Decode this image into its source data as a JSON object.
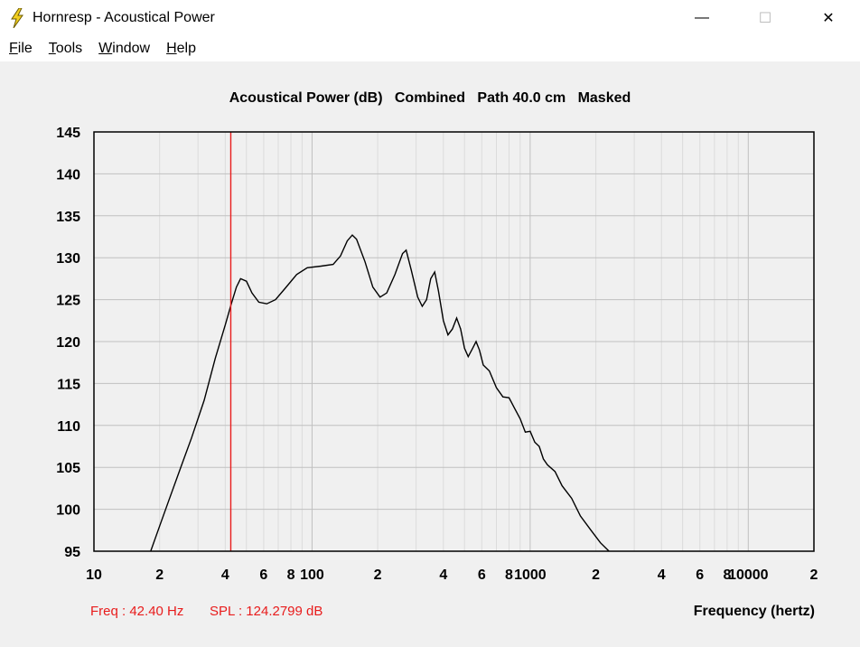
{
  "window": {
    "title": "Hornresp - Acoustical Power",
    "minimize_glyph": "—",
    "maximize_glyph": "☐",
    "close_glyph": "✕",
    "icon": "lightning-icon"
  },
  "menu": [
    {
      "acc": "F",
      "rest": "ile"
    },
    {
      "acc": "T",
      "rest": "ools"
    },
    {
      "acc": "W",
      "rest": "indow"
    },
    {
      "acc": "H",
      "rest": "elp"
    }
  ],
  "status": {
    "freq": "Freq : 42.40 Hz",
    "spl": "SPL : 124.2799 dB"
  },
  "colors": {
    "marker": "#e81c1c",
    "curve": "#000000",
    "grid_major": "#c0c0c0",
    "grid_minor": "#dcdcdc"
  },
  "chart_data": {
    "type": "line",
    "title": "Acoustical Power (dB)   Combined   Path 40.0 cm   Masked",
    "xlabel": "Frequency (hertz)",
    "ylabel": "",
    "x_scale": "log",
    "xlim": [
      10,
      20000
    ],
    "ylim": [
      95,
      145
    ],
    "yticks": [
      145,
      140,
      135,
      130,
      125,
      120,
      115,
      110,
      105,
      100,
      95
    ],
    "xtick_labels": [
      {
        "v": 10,
        "t": "10"
      },
      {
        "v": 20,
        "t": "2"
      },
      {
        "v": 40,
        "t": "4"
      },
      {
        "v": 60,
        "t": "6"
      },
      {
        "v": 80,
        "t": "8"
      },
      {
        "v": 100,
        "t": "100"
      },
      {
        "v": 200,
        "t": "2"
      },
      {
        "v": 400,
        "t": "4"
      },
      {
        "v": 600,
        "t": "6"
      },
      {
        "v": 800,
        "t": "8"
      },
      {
        "v": 1000,
        "t": "1000"
      },
      {
        "v": 2000,
        "t": "2"
      },
      {
        "v": 4000,
        "t": "4"
      },
      {
        "v": 6000,
        "t": "6"
      },
      {
        "v": 8000,
        "t": "8"
      },
      {
        "v": 10000,
        "t": "10000"
      },
      {
        "v": 20000,
        "t": "2"
      }
    ],
    "marker_x": 42.4,
    "series": [
      {
        "points": [
          [
            18.2,
            95
          ],
          [
            20,
            98
          ],
          [
            22,
            101
          ],
          [
            25,
            105
          ],
          [
            28,
            108.5
          ],
          [
            32,
            113
          ],
          [
            36,
            118
          ],
          [
            40,
            122
          ],
          [
            42.4,
            124.3
          ],
          [
            45,
            126.5
          ],
          [
            47,
            127.5
          ],
          [
            50,
            127.2
          ],
          [
            53,
            125.8
          ],
          [
            57,
            124.7
          ],
          [
            62,
            124.5
          ],
          [
            68,
            125
          ],
          [
            75,
            126.3
          ],
          [
            85,
            128
          ],
          [
            95,
            128.8
          ],
          [
            110,
            129
          ],
          [
            125,
            129.2
          ],
          [
            135,
            130.2
          ],
          [
            145,
            132
          ],
          [
            153,
            132.7
          ],
          [
            160,
            132.2
          ],
          [
            175,
            129.5
          ],
          [
            190,
            126.5
          ],
          [
            205,
            125.3
          ],
          [
            220,
            125.8
          ],
          [
            240,
            128
          ],
          [
            260,
            130.5
          ],
          [
            270,
            130.9
          ],
          [
            285,
            128.5
          ],
          [
            305,
            125.3
          ],
          [
            320,
            124.2
          ],
          [
            335,
            125
          ],
          [
            350,
            127.5
          ],
          [
            365,
            128.3
          ],
          [
            380,
            126
          ],
          [
            400,
            122.5
          ],
          [
            420,
            120.8
          ],
          [
            440,
            121.5
          ],
          [
            460,
            122.8
          ],
          [
            480,
            121.5
          ],
          [
            500,
            119.2
          ],
          [
            520,
            118.2
          ],
          [
            545,
            119.2
          ],
          [
            565,
            120
          ],
          [
            585,
            119
          ],
          [
            610,
            117.2
          ],
          [
            650,
            116.5
          ],
          [
            700,
            114.5
          ],
          [
            750,
            113.4
          ],
          [
            800,
            113.3
          ],
          [
            850,
            112
          ],
          [
            900,
            110.8
          ],
          [
            950,
            109.2
          ],
          [
            1000,
            109.3
          ],
          [
            1050,
            108
          ],
          [
            1100,
            107.5
          ],
          [
            1150,
            106
          ],
          [
            1200,
            105.3
          ],
          [
            1300,
            104.5
          ],
          [
            1400,
            102.8
          ],
          [
            1550,
            101.3
          ],
          [
            1700,
            99.2
          ],
          [
            1900,
            97.5
          ],
          [
            2100,
            96
          ],
          [
            2300,
            95
          ]
        ]
      }
    ]
  }
}
